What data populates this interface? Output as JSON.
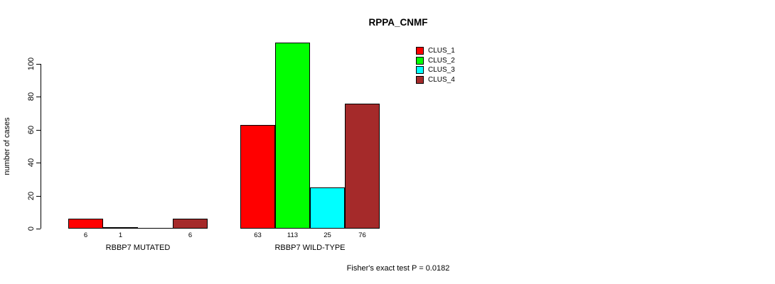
{
  "chart_data": {
    "type": "bar",
    "title": "RPPA_CNMF",
    "xlabel": "",
    "ylabel": "number of cases",
    "ylim": [
      0,
      113
    ],
    "yticks": [
      0,
      20,
      40,
      60,
      80,
      100
    ],
    "grid": false,
    "legend_position": "top-right",
    "categories": [
      "RBBP7 MUTATED",
      "RBBP7 WILD-TYPE"
    ],
    "series": [
      {
        "name": "CLUS_1",
        "color": "#ff0000",
        "values": [
          6,
          63
        ]
      },
      {
        "name": "CLUS_2",
        "color": "#00ff00",
        "values": [
          1,
          113
        ]
      },
      {
        "name": "CLUS_3",
        "color": "#00ffff",
        "values": [
          0,
          25
        ]
      },
      {
        "name": "CLUS_4",
        "color": "#a52a2a",
        "values": [
          6,
          76
        ]
      }
    ],
    "bar_value_labels": [
      [
        "6",
        "1",
        "",
        "6"
      ],
      [
        "63",
        "113",
        "25",
        "76"
      ]
    ],
    "annotation": "Fisher's exact test P = 0.0182"
  }
}
